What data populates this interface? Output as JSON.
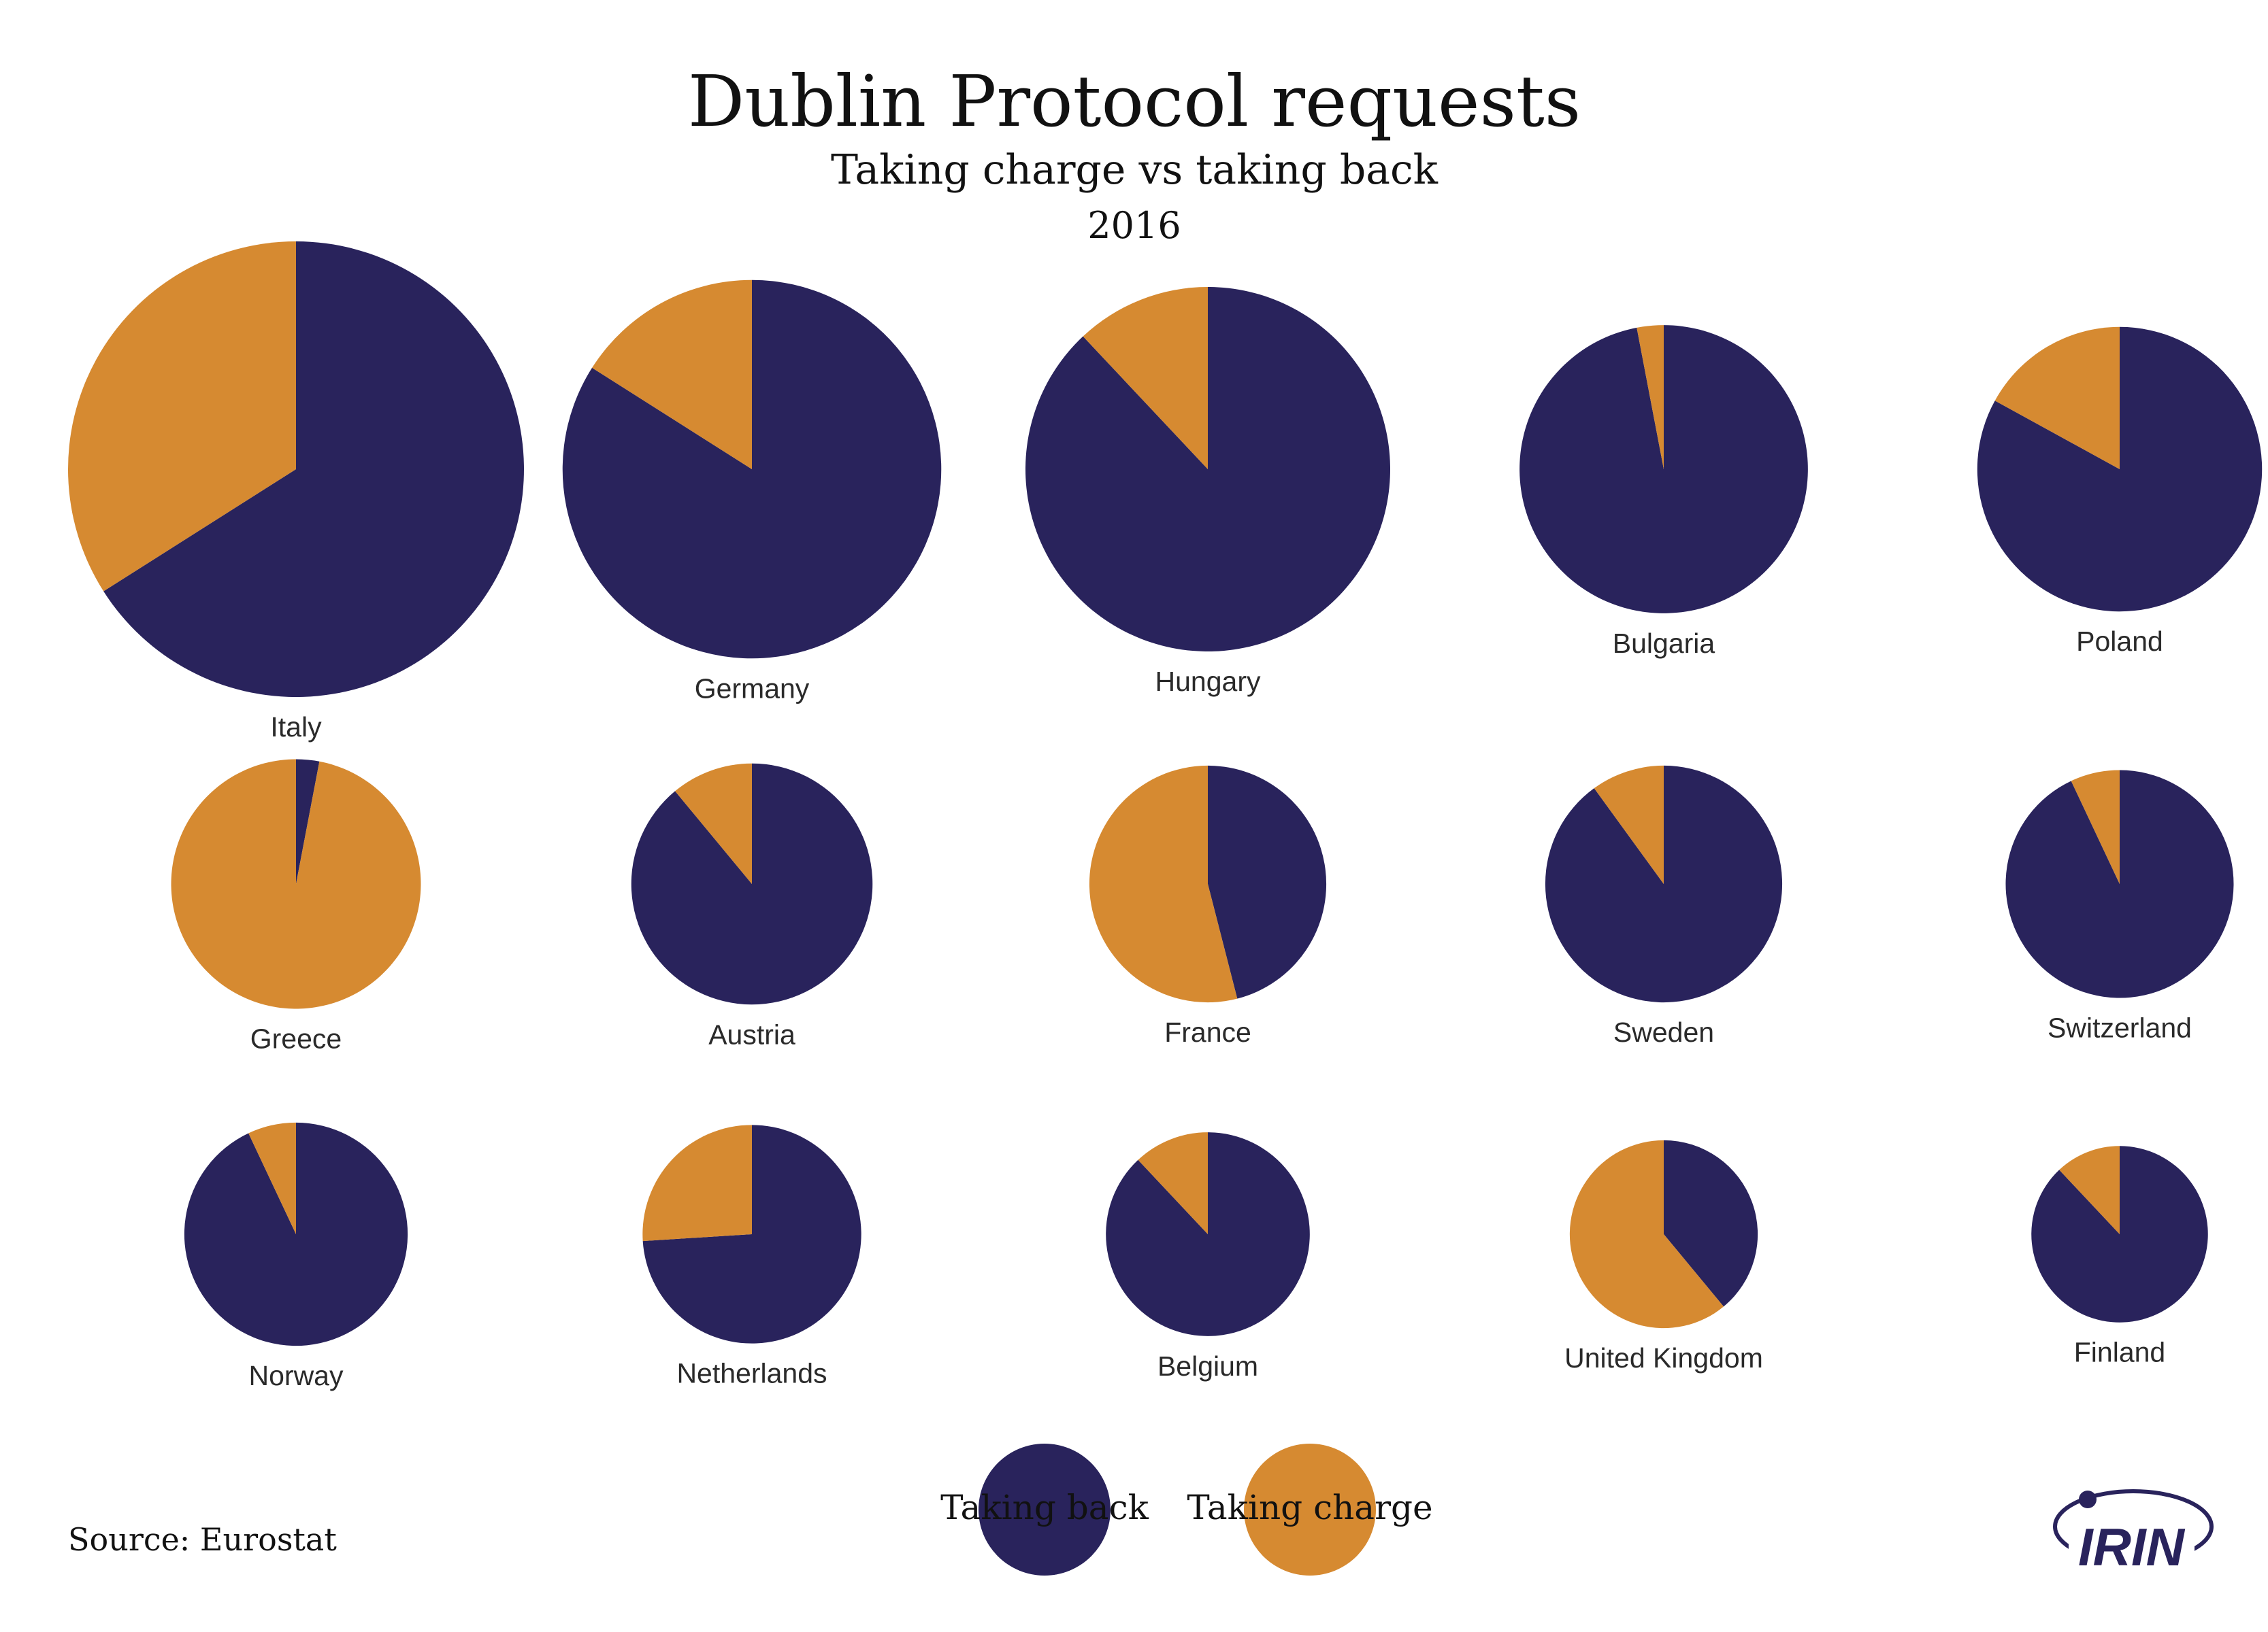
{
  "title": "Dublin Protocol requests",
  "subtitle": "Taking charge vs taking back",
  "year": "2016",
  "source": "Source: Eurostat",
  "logo_text": "IRIN",
  "colors": {
    "taking_back": "#29235c",
    "taking_charge": "#d68a31"
  },
  "legend": {
    "taking_back": "Taking back",
    "taking_charge": "Taking charge"
  },
  "chart_data": {
    "type": "pie",
    "title": "Dublin Protocol requests",
    "subtitle": "Taking charge vs taking back",
    "note": "Each pie is one country; pie area scales with the total number of requests (relative size estimated).",
    "series_names": [
      "Taking back",
      "Taking charge"
    ],
    "pies": [
      {
        "country": "Italy",
        "taking_back_share": 0.66,
        "taking_charge_share": 0.34,
        "relative_size": 1.0
      },
      {
        "country": "Germany",
        "taking_back_share": 0.84,
        "taking_charge_share": 0.16,
        "relative_size": 0.69
      },
      {
        "country": "Hungary",
        "taking_back_share": 0.88,
        "taking_charge_share": 0.12,
        "relative_size": 0.64
      },
      {
        "country": "Bulgaria",
        "taking_back_share": 0.97,
        "taking_charge_share": 0.03,
        "relative_size": 0.4
      },
      {
        "country": "Poland",
        "taking_back_share": 0.83,
        "taking_charge_share": 0.17,
        "relative_size": 0.39
      },
      {
        "country": "Greece",
        "taking_back_share": 0.03,
        "taking_charge_share": 0.97,
        "relative_size": 0.3
      },
      {
        "country": "Austria",
        "taking_back_share": 0.89,
        "taking_charge_share": 0.11,
        "relative_size": 0.28
      },
      {
        "country": "France",
        "taking_back_share": 0.46,
        "taking_charge_share": 0.54,
        "relative_size": 0.27
      },
      {
        "country": "Sweden",
        "taking_back_share": 0.9,
        "taking_charge_share": 0.1,
        "relative_size": 0.27
      },
      {
        "country": "Switzerland",
        "taking_back_share": 0.93,
        "taking_charge_share": 0.07,
        "relative_size": 0.25
      },
      {
        "country": "Norway",
        "taking_back_share": 0.93,
        "taking_charge_share": 0.07,
        "relative_size": 0.24
      },
      {
        "country": "Netherlands",
        "taking_back_share": 0.74,
        "taking_charge_share": 0.26,
        "relative_size": 0.23
      },
      {
        "country": "Belgium",
        "taking_back_share": 0.88,
        "taking_charge_share": 0.12,
        "relative_size": 0.2
      },
      {
        "country": "United Kingdom",
        "taking_back_share": 0.39,
        "taking_charge_share": 0.61,
        "relative_size": 0.17
      },
      {
        "country": "Finland",
        "taking_back_share": 0.88,
        "taking_charge_share": 0.12,
        "relative_size": 0.15
      }
    ]
  }
}
